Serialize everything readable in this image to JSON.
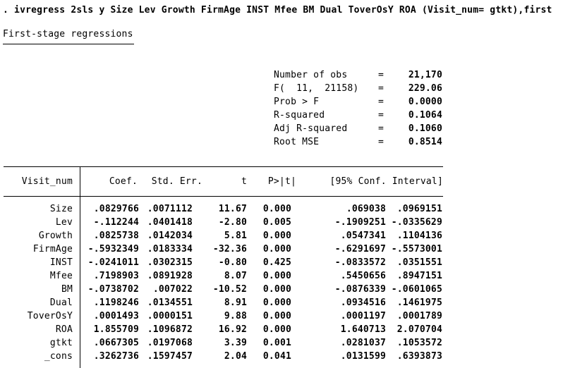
{
  "command_line": ". ivregress 2sls y Size Lev Growth FirmAge INST Mfee BM Dual ToverOsY ROA (Visit_num= gtkt),first",
  "section_title": "First-stage regressions",
  "stats": {
    "equals": "=",
    "rows": [
      {
        "label": "Number of obs",
        "value": "21,170"
      },
      {
        "label": "F(  11,  21158)",
        "value": "229.06"
      },
      {
        "label": "Prob > F",
        "value": "0.0000"
      },
      {
        "label": "R-squared",
        "value": "0.1064"
      },
      {
        "label": "Adj R-squared",
        "value": "0.1060"
      },
      {
        "label": "Root MSE",
        "value": "0.8514"
      }
    ]
  },
  "table": {
    "dep_var": "Visit_num",
    "headers": {
      "coef": "Coef.",
      "std_err": "Std. Err.",
      "t": "t",
      "p": "P>|t|",
      "ci": "[95% Conf. Interval]"
    },
    "rows": [
      {
        "var": "Size",
        "coef": ".0829766",
        "std_err": ".0071112",
        "t": "11.67",
        "p": "0.000",
        "ci_low": ".069038",
        "ci_high": ".0969151"
      },
      {
        "var": "Lev",
        "coef": "-.112244",
        "std_err": ".0401418",
        "t": "-2.80",
        "p": "0.005",
        "ci_low": "-.1909251",
        "ci_high": "-.0335629"
      },
      {
        "var": "Growth",
        "coef": ".0825738",
        "std_err": ".0142034",
        "t": "5.81",
        "p": "0.000",
        "ci_low": ".0547341",
        "ci_high": ".1104136"
      },
      {
        "var": "FirmAge",
        "coef": "-.5932349",
        "std_err": ".0183334",
        "t": "-32.36",
        "p": "0.000",
        "ci_low": "-.6291697",
        "ci_high": "-.5573001"
      },
      {
        "var": "INST",
        "coef": "-.0241011",
        "std_err": ".0302315",
        "t": "-0.80",
        "p": "0.425",
        "ci_low": "-.0833572",
        "ci_high": ".0351551"
      },
      {
        "var": "Mfee",
        "coef": ".7198903",
        "std_err": ".0891928",
        "t": "8.07",
        "p": "0.000",
        "ci_low": ".5450656",
        "ci_high": ".8947151"
      },
      {
        "var": "BM",
        "coef": "-.0738702",
        "std_err": ".007022",
        "t": "-10.52",
        "p": "0.000",
        "ci_low": "-.0876339",
        "ci_high": "-.0601065"
      },
      {
        "var": "Dual",
        "coef": ".1198246",
        "std_err": ".0134551",
        "t": "8.91",
        "p": "0.000",
        "ci_low": ".0934516",
        "ci_high": ".1461975"
      },
      {
        "var": "ToverOsY",
        "coef": ".0001493",
        "std_err": ".0000151",
        "t": "9.88",
        "p": "0.000",
        "ci_low": ".0001197",
        "ci_high": ".0001789"
      },
      {
        "var": "ROA",
        "coef": "1.855709",
        "std_err": ".1096872",
        "t": "16.92",
        "p": "0.000",
        "ci_low": "1.640713",
        "ci_high": "2.070704"
      },
      {
        "var": "gtkt",
        "coef": ".0667305",
        "std_err": ".0197068",
        "t": "3.39",
        "p": "0.001",
        "ci_low": ".0281037",
        "ci_high": ".1053572"
      },
      {
        "var": "_cons",
        "coef": ".3262736",
        "std_err": ".1597457",
        "t": "2.04",
        "p": "0.041",
        "ci_low": ".0131599",
        "ci_high": ".6393873"
      }
    ]
  },
  "colors": {
    "text": "#000000",
    "background": "#ffffff"
  }
}
